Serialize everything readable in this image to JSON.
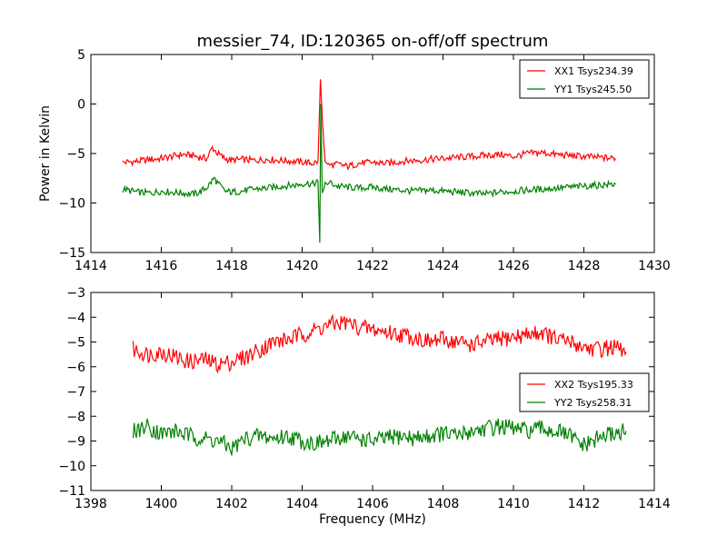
{
  "title": "messier_74, ID:120365 on-off/off spectrum",
  "colors": {
    "xx": "#ff0000",
    "yy": "#008000",
    "axes": "#000000"
  },
  "chart_data": [
    {
      "type": "line",
      "title": "messier_74, ID:120365 on-off/off spectrum",
      "xlabel": "",
      "ylabel": "Power in Kelvin",
      "xlim": [
        1414,
        1430
      ],
      "ylim": [
        -15,
        5
      ],
      "xticks": [
        1414,
        1416,
        1418,
        1420,
        1422,
        1424,
        1426,
        1428,
        1430
      ],
      "yticks": [
        5,
        0,
        -5,
        -10,
        -15
      ],
      "grid": false,
      "legend_placement": "top-right",
      "series": [
        {
          "name": "XX1 Tsys234.39",
          "color": "#ff0000",
          "x": [
            1414.9,
            1415.3,
            1415.7,
            1416.0,
            1416.3,
            1416.6,
            1416.9,
            1417.1,
            1417.3,
            1417.45,
            1417.6,
            1417.8,
            1418.0,
            1418.3,
            1418.6,
            1419.0,
            1419.4,
            1419.8,
            1420.1,
            1420.3,
            1420.45,
            1420.52,
            1420.58,
            1420.65,
            1420.75,
            1421.0,
            1421.3,
            1421.6,
            1422.0,
            1422.4,
            1422.8,
            1423.2,
            1423.6,
            1424.0,
            1424.4,
            1424.8,
            1425.2,
            1425.6,
            1426.0,
            1426.4,
            1426.8,
            1427.2,
            1427.6,
            1428.0,
            1428.4,
            1428.9
          ],
          "y": [
            -5.9,
            -5.8,
            -5.6,
            -5.5,
            -5.3,
            -5.1,
            -5.2,
            -5.4,
            -5.5,
            -4.4,
            -5.0,
            -5.5,
            -5.7,
            -5.6,
            -5.7,
            -5.6,
            -5.7,
            -5.8,
            -5.9,
            -6.0,
            -5.8,
            2.5,
            -2.0,
            -5.8,
            -6.2,
            -6.1,
            -6.3,
            -6.0,
            -5.9,
            -6.0,
            -5.8,
            -5.7,
            -5.6,
            -5.5,
            -5.4,
            -5.3,
            -5.2,
            -5.1,
            -5.3,
            -5.0,
            -4.9,
            -5.1,
            -5.2,
            -5.3,
            -5.4,
            -5.5
          ]
        },
        {
          "name": "YY1 Tsys245.50",
          "color": "#008000",
          "x": [
            1414.9,
            1415.3,
            1415.7,
            1416.0,
            1416.3,
            1416.6,
            1416.9,
            1417.1,
            1417.3,
            1417.5,
            1417.65,
            1417.8,
            1418.0,
            1418.3,
            1418.6,
            1419.0,
            1419.4,
            1419.8,
            1420.1,
            1420.3,
            1420.45,
            1420.5,
            1420.53,
            1420.57,
            1420.65,
            1420.75,
            1421.0,
            1421.3,
            1421.6,
            1422.0,
            1422.4,
            1422.8,
            1423.2,
            1423.6,
            1424.0,
            1424.4,
            1424.8,
            1425.2,
            1425.6,
            1426.0,
            1426.4,
            1426.8,
            1427.2,
            1427.6,
            1428.0,
            1428.4,
            1428.9
          ],
          "y": [
            -8.6,
            -8.9,
            -9.0,
            -8.8,
            -8.9,
            -9.0,
            -9.1,
            -8.9,
            -8.4,
            -7.5,
            -8.2,
            -8.8,
            -8.9,
            -8.8,
            -8.6,
            -8.5,
            -8.3,
            -8.2,
            -8.0,
            -8.1,
            -7.8,
            -14.0,
            0.0,
            -9.0,
            -8.2,
            -7.9,
            -8.3,
            -8.4,
            -8.5,
            -8.4,
            -8.6,
            -8.7,
            -8.8,
            -8.7,
            -8.8,
            -8.9,
            -9.0,
            -9.1,
            -8.9,
            -8.8,
            -8.7,
            -8.6,
            -8.5,
            -8.4,
            -8.3,
            -8.2,
            -8.1
          ]
        }
      ]
    },
    {
      "type": "line",
      "title": "",
      "xlabel": "Frequency (MHz)",
      "ylabel": "",
      "xlim": [
        1398,
        1414
      ],
      "ylim": [
        -11,
        -3
      ],
      "xticks": [
        1398,
        1400,
        1402,
        1404,
        1406,
        1408,
        1410,
        1412,
        1414
      ],
      "yticks": [
        -3,
        -4,
        -5,
        -6,
        -7,
        -8,
        -9,
        -10,
        -11
      ],
      "grid": false,
      "legend_placement": "center-right",
      "series": [
        {
          "name": "XX2 Tsys195.33",
          "color": "#ff0000",
          "x": [
            1399.2,
            1399.6,
            1400.0,
            1400.4,
            1400.8,
            1401.2,
            1401.6,
            1402.0,
            1402.4,
            1402.8,
            1403.2,
            1403.6,
            1404.0,
            1404.4,
            1404.8,
            1405.2,
            1405.6,
            1406.0,
            1406.4,
            1406.8,
            1407.2,
            1407.6,
            1408.0,
            1408.4,
            1408.8,
            1409.2,
            1409.6,
            1410.0,
            1410.4,
            1410.8,
            1411.2,
            1411.6,
            1412.0,
            1412.4,
            1412.8,
            1413.2
          ],
          "y": [
            -5.3,
            -5.5,
            -5.4,
            -5.6,
            -5.8,
            -5.7,
            -5.9,
            -5.8,
            -5.6,
            -5.3,
            -5.0,
            -4.9,
            -4.7,
            -4.5,
            -4.3,
            -4.2,
            -4.4,
            -4.5,
            -4.6,
            -4.7,
            -4.8,
            -5.0,
            -4.9,
            -5.0,
            -5.1,
            -5.0,
            -4.9,
            -4.8,
            -4.7,
            -4.6,
            -4.9,
            -5.0,
            -5.2,
            -5.3,
            -5.2,
            -5.4
          ]
        },
        {
          "name": "YY2 Tsys258.31",
          "color": "#008000",
          "x": [
            1399.2,
            1399.6,
            1400.0,
            1400.4,
            1400.8,
            1401.2,
            1401.6,
            1402.0,
            1402.4,
            1402.8,
            1403.2,
            1403.6,
            1404.0,
            1404.4,
            1404.8,
            1405.2,
            1405.6,
            1406.0,
            1406.4,
            1406.8,
            1407.2,
            1407.6,
            1408.0,
            1408.4,
            1408.8,
            1409.2,
            1409.6,
            1410.0,
            1410.4,
            1410.8,
            1411.2,
            1411.6,
            1412.0,
            1412.4,
            1412.8,
            1413.2
          ],
          "y": [
            -8.6,
            -8.4,
            -8.7,
            -8.6,
            -8.8,
            -8.9,
            -9.0,
            -9.3,
            -8.9,
            -8.8,
            -8.9,
            -8.8,
            -9.0,
            -9.1,
            -9.0,
            -8.8,
            -8.9,
            -9.0,
            -8.9,
            -8.8,
            -8.9,
            -8.8,
            -8.7,
            -8.8,
            -8.6,
            -8.5,
            -8.4,
            -8.5,
            -8.6,
            -8.5,
            -8.6,
            -8.8,
            -9.2,
            -8.9,
            -8.7,
            -8.6
          ]
        }
      ]
    }
  ]
}
